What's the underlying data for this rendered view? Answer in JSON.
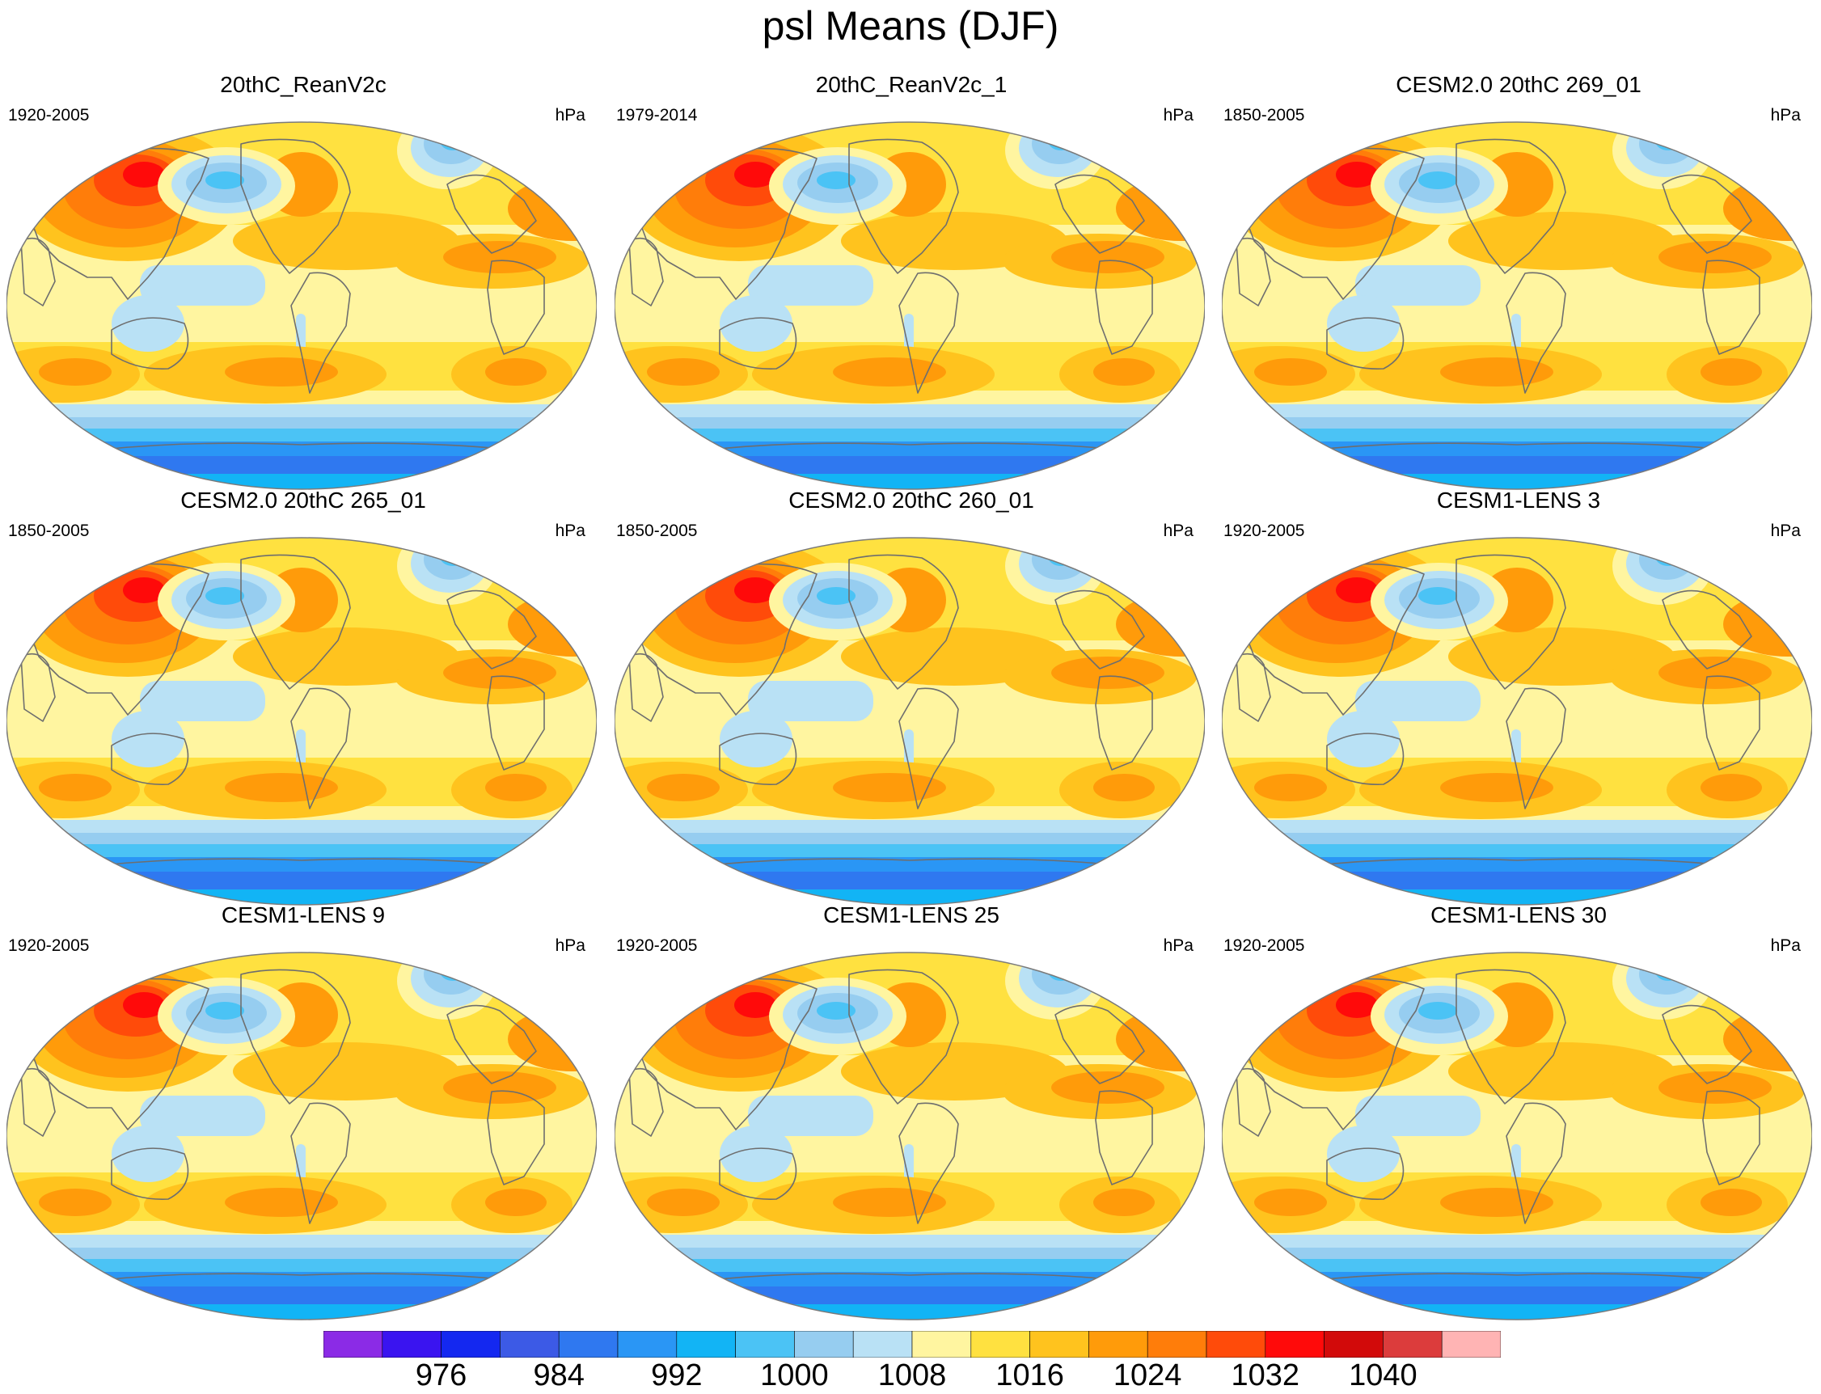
{
  "figure": {
    "title": "psl Means (DJF)"
  },
  "panels": [
    {
      "title": "20thC_ReanV2c",
      "period": "1920-2005",
      "units": "hPa"
    },
    {
      "title": "20thC_ReanV2c_1",
      "period": "1979-2014",
      "units": "hPa"
    },
    {
      "title": "CESM2.0 20thC 269_01",
      "period": "1850-2005",
      "units": "hPa"
    },
    {
      "title": "CESM2.0 20thC 265_01",
      "period": "1850-2005",
      "units": "hPa"
    },
    {
      "title": "CESM2.0 20thC 260_01",
      "period": "1850-2005",
      "units": "hPa"
    },
    {
      "title": "CESM1-LENS 3",
      "period": "1920-2005",
      "units": "hPa"
    },
    {
      "title": "CESM1-LENS 9",
      "period": "1920-2005",
      "units": "hPa"
    },
    {
      "title": "CESM1-LENS 25",
      "period": "1920-2005",
      "units": "hPa"
    },
    {
      "title": "CESM1-LENS 30",
      "period": "1920-2005",
      "units": "hPa"
    }
  ],
  "colorbar": {
    "colors": [
      "#8b2be6",
      "#3a14f0",
      "#1428f0",
      "#3c5ae6",
      "#2f78f0",
      "#2a96f5",
      "#12b4f5",
      "#4bc3f5",
      "#96cdf0",
      "#b9e1f5",
      "#fff5a0",
      "#ffe140",
      "#ffc31e",
      "#ff9b0a",
      "#ff7d0a",
      "#ff4b0a",
      "#ff0a0a",
      "#d20a0a",
      "#dc3c3c",
      "#ffb4b4"
    ],
    "labels": [
      {
        "text": "976",
        "index": 2
      },
      {
        "text": "984",
        "index": 4
      },
      {
        "text": "992",
        "index": 6
      },
      {
        "text": "1000",
        "index": 8
      },
      {
        "text": "1008",
        "index": 10
      },
      {
        "text": "1016",
        "index": 12
      },
      {
        "text": "1024",
        "index": 14
      },
      {
        "text": "1032",
        "index": 16
      },
      {
        "text": "1040",
        "index": 18
      }
    ]
  }
}
